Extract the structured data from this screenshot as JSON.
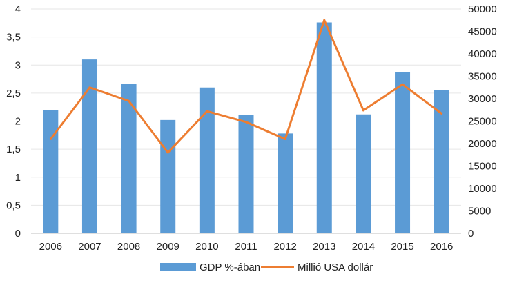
{
  "chart_data": {
    "type": "bar",
    "categories": [
      "2006",
      "2007",
      "2008",
      "2009",
      "2010",
      "2011",
      "2012",
      "2013",
      "2014",
      "2015",
      "2016"
    ],
    "series": [
      {
        "name": "GDP %-ában",
        "type": "bar",
        "axis": "left",
        "color": "#5b9bd5",
        "values": [
          2.2,
          3.1,
          2.67,
          2.02,
          2.6,
          2.11,
          1.78,
          3.76,
          2.12,
          2.88,
          2.56
        ]
      },
      {
        "name": "Millió USA dollár",
        "type": "line",
        "axis": "right",
        "color": "#ed7d31",
        "values": [
          21000,
          32500,
          29500,
          18000,
          27200,
          24800,
          21000,
          47500,
          27400,
          33200,
          26700
        ]
      }
    ],
    "y_left": {
      "ylim": [
        0,
        4
      ],
      "ticks": [
        "0",
        "0,5",
        "1",
        "1,5",
        "2",
        "2,5",
        "3",
        "3,5",
        "4"
      ]
    },
    "y_right": {
      "ylim": [
        0,
        50000
      ],
      "ticks": [
        "0",
        "5000",
        "10000",
        "15000",
        "20000",
        "25000",
        "30000",
        "35000",
        "40000",
        "45000",
        "50000"
      ]
    },
    "grid": true,
    "legend_position": "bottom"
  }
}
